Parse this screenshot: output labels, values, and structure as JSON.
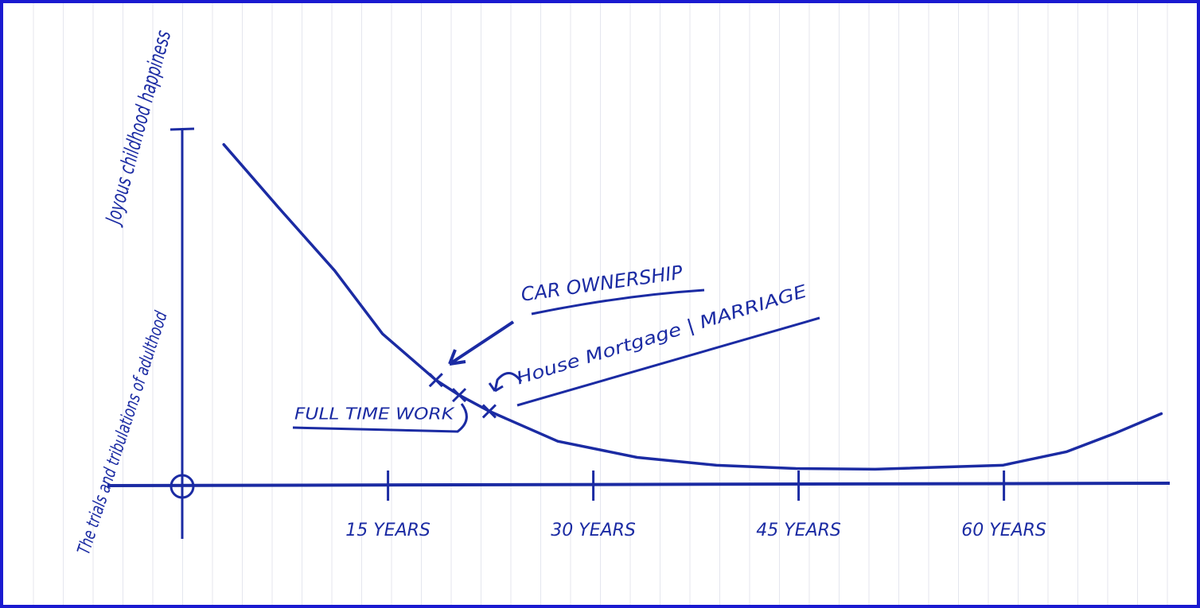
{
  "chart_data": {
    "type": "line",
    "color": "#1b2ba3",
    "y_top_label": "Joyous childhood happiness",
    "y_bottom_label": "The trials and tribulations of adulthood",
    "x": [
      3.0,
      7.0,
      11.1,
      14.6,
      18.5,
      20.2,
      22.4,
      27.4,
      33.2,
      39.0,
      44.8,
      50.6,
      59.9,
      64.6,
      68.1,
      71.5
    ],
    "values": [
      95.6,
      78,
      60.4,
      42.7,
      29.8,
      25.6,
      21.1,
      12.7,
      8.2,
      6.0,
      5.1,
      4.9,
      6.0,
      9.8,
      14.9,
      20.4
    ],
    "xlim": [
      -5.5,
      72
    ],
    "ylim": [
      -15,
      100
    ],
    "xticks": [
      {
        "value": 15,
        "label": "15 YEARS"
      },
      {
        "value": 30,
        "label": "30 YEARS"
      },
      {
        "value": 45,
        "label": "45 YEARS"
      },
      {
        "value": 60,
        "label": "60 YEARS"
      }
    ],
    "annotations": [
      {
        "label": "CAR OWNERSHIP",
        "x": 18.5,
        "y": 29.8
      },
      {
        "label": "FULL TIME WORK",
        "x": 20.2,
        "y": 25.6
      },
      {
        "label": "House Mortgage | MARRIAGE",
        "x": 22.4,
        "y": 21.1
      }
    ]
  }
}
